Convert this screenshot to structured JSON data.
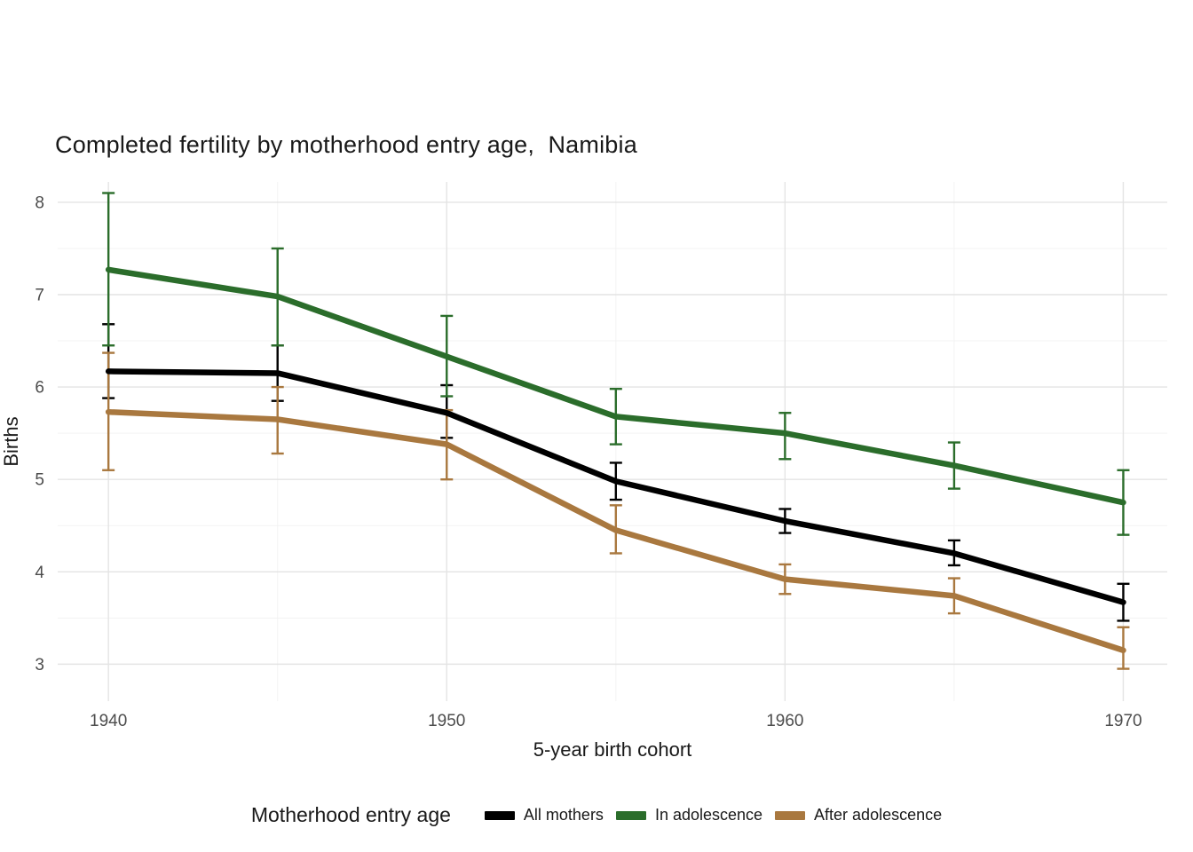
{
  "chart_data": {
    "type": "line",
    "title": "Completed fertility by motherhood entry age,  Namibia",
    "xlabel": "5-year birth cohort",
    "ylabel": "Births",
    "legend_title": "Motherhood entry age",
    "legend_position": "bottom",
    "grid": true,
    "x": [
      1940,
      1945,
      1950,
      1955,
      1960,
      1965,
      1970
    ],
    "xticks": [
      1940,
      1950,
      1960,
      1970
    ],
    "yticks": [
      3,
      4,
      5,
      6,
      7,
      8
    ],
    "xlim": [
      1938.5,
      1971.3
    ],
    "ylim": [
      2.6,
      8.22
    ],
    "series": [
      {
        "name": "All mothers",
        "color": "#000000",
        "values": [
          6.17,
          6.15,
          5.72,
          4.98,
          4.55,
          4.2,
          3.67
        ],
        "ci_low": [
          5.88,
          5.85,
          5.45,
          4.78,
          4.42,
          4.07,
          3.47
        ],
        "ci_high": [
          6.68,
          6.45,
          6.02,
          5.18,
          4.68,
          4.34,
          3.87
        ]
      },
      {
        "name": "In adolescence",
        "color": "#2b6d2b",
        "values": [
          7.27,
          6.98,
          6.33,
          5.68,
          5.5,
          5.15,
          4.75
        ],
        "ci_low": [
          6.45,
          6.45,
          5.9,
          5.38,
          5.22,
          4.9,
          4.4
        ],
        "ci_high": [
          8.1,
          7.5,
          6.77,
          5.98,
          5.72,
          5.4,
          5.1
        ]
      },
      {
        "name": "After adolescence",
        "color": "#a9783f",
        "values": [
          5.73,
          5.65,
          5.38,
          4.45,
          3.92,
          3.74,
          3.15
        ],
        "ci_low": [
          5.1,
          5.28,
          5.0,
          4.2,
          3.76,
          3.55,
          2.95
        ],
        "ci_high": [
          6.37,
          6.0,
          5.75,
          4.72,
          4.08,
          3.93,
          3.4
        ]
      }
    ]
  }
}
